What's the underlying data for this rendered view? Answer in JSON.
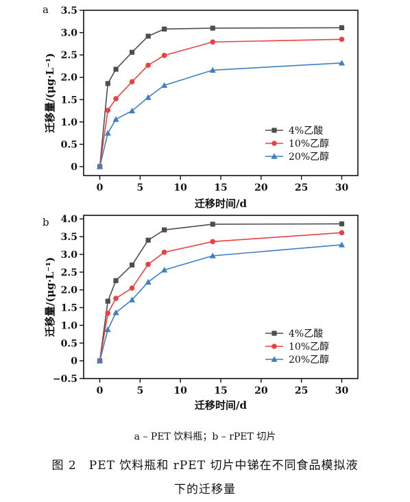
{
  "chart_data": [
    {
      "panel_label": "a",
      "type": "line",
      "xlabel": "迁移时间/d",
      "ylabel": "迁移量/(μg·L⁻¹)",
      "xlim": [
        -2,
        32
      ],
      "ylim": [
        -0.2,
        3.5
      ],
      "xticks": [
        0,
        5,
        10,
        15,
        20,
        25,
        30
      ],
      "yticks": [
        0,
        0.5,
        1.0,
        1.5,
        2.0,
        2.5,
        3.0,
        3.5
      ],
      "ytick_labels": [
        "0",
        "0.5",
        "1.0",
        "1.5",
        "2.0",
        "2.5",
        "3.0",
        "3.5"
      ],
      "legend_position": "bottom-right",
      "x": [
        0,
        1,
        2,
        4,
        6,
        8,
        14,
        30
      ],
      "series": [
        {
          "name": "4%乙酸",
          "color": "#4d4d4d",
          "marker": "square",
          "values": [
            0,
            1.86,
            2.18,
            2.56,
            2.92,
            3.08,
            3.1,
            3.11
          ]
        },
        {
          "name": "10%乙醇",
          "color": "#e8413e",
          "marker": "circle",
          "values": [
            0,
            1.26,
            1.52,
            1.9,
            2.27,
            2.49,
            2.79,
            2.85
          ]
        },
        {
          "name": "20%乙醇",
          "color": "#3b7fc4",
          "marker": "triangle",
          "values": [
            0,
            0.75,
            1.06,
            1.25,
            1.55,
            1.82,
            2.16,
            2.32
          ]
        }
      ]
    },
    {
      "panel_label": "b",
      "type": "line",
      "xlabel": "迁移时间/d",
      "ylabel": "迁移量/(μg·L⁻¹)",
      "xlim": [
        -2,
        32
      ],
      "ylim": [
        -0.5,
        4.1
      ],
      "xticks": [
        0,
        5,
        10,
        15,
        20,
        25,
        30
      ],
      "yticks": [
        -0.5,
        0,
        0.5,
        1.0,
        1.5,
        2.0,
        2.5,
        3.0,
        3.5,
        4.0
      ],
      "ytick_labels": [
        "−0.5",
        "0",
        "0.5",
        "1.0",
        "1.5",
        "2.0",
        "2.5",
        "3.0",
        "3.5",
        "4.0"
      ],
      "legend_position": "bottom-right",
      "x": [
        0,
        1,
        2,
        4,
        6,
        8,
        14,
        30
      ],
      "series": [
        {
          "name": "4%乙酸",
          "color": "#4d4d4d",
          "marker": "square",
          "values": [
            0,
            1.68,
            2.26,
            2.7,
            3.4,
            3.69,
            3.85,
            3.86
          ]
        },
        {
          "name": "10%乙醇",
          "color": "#e8413e",
          "marker": "circle",
          "values": [
            0,
            1.34,
            1.76,
            2.05,
            2.72,
            3.06,
            3.36,
            3.61
          ]
        },
        {
          "name": "20%乙醇",
          "color": "#3b7fc4",
          "marker": "triangle",
          "values": [
            0,
            0.88,
            1.36,
            1.72,
            2.22,
            2.56,
            2.96,
            3.27
          ]
        }
      ]
    }
  ],
  "caption": {
    "subcaption": "a – PET 饮料瓶；b – rPET 切片",
    "figure_line1": "图 2　PET 饮料瓶和 rPET 切片中锑在不同食品模拟液",
    "figure_line2": "下的迁移量"
  }
}
